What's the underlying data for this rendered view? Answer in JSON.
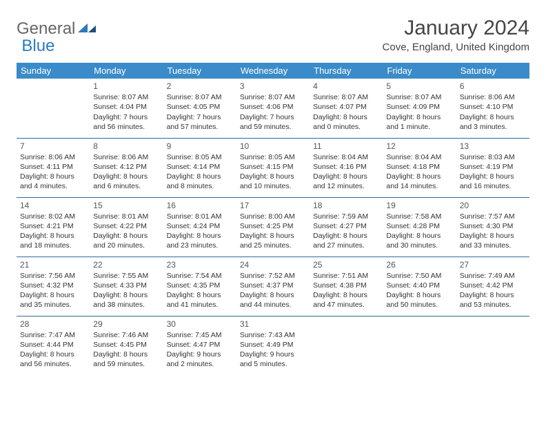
{
  "brand": {
    "part1": "General",
    "part2": "Blue"
  },
  "title": "January 2024",
  "location": "Cove, England, United Kingdom",
  "colors": {
    "header_bg": "#3a8bc9",
    "header_text": "#ffffff",
    "row_border": "#2b6aa0",
    "text": "#333333",
    "title_text": "#444444",
    "brand_gray": "#666666",
    "brand_blue": "#2b7bbf"
  },
  "day_headers": [
    "Sunday",
    "Monday",
    "Tuesday",
    "Wednesday",
    "Thursday",
    "Friday",
    "Saturday"
  ],
  "weeks": [
    [
      {
        "n": "",
        "lines": []
      },
      {
        "n": "1",
        "lines": [
          "Sunrise: 8:07 AM",
          "Sunset: 4:04 PM",
          "Daylight: 7 hours and 56 minutes."
        ]
      },
      {
        "n": "2",
        "lines": [
          "Sunrise: 8:07 AM",
          "Sunset: 4:05 PM",
          "Daylight: 7 hours and 57 minutes."
        ]
      },
      {
        "n": "3",
        "lines": [
          "Sunrise: 8:07 AM",
          "Sunset: 4:06 PM",
          "Daylight: 7 hours and 59 minutes."
        ]
      },
      {
        "n": "4",
        "lines": [
          "Sunrise: 8:07 AM",
          "Sunset: 4:07 PM",
          "Daylight: 8 hours and 0 minutes."
        ]
      },
      {
        "n": "5",
        "lines": [
          "Sunrise: 8:07 AM",
          "Sunset: 4:09 PM",
          "Daylight: 8 hours and 1 minute."
        ]
      },
      {
        "n": "6",
        "lines": [
          "Sunrise: 8:06 AM",
          "Sunset: 4:10 PM",
          "Daylight: 8 hours and 3 minutes."
        ]
      }
    ],
    [
      {
        "n": "7",
        "lines": [
          "Sunrise: 8:06 AM",
          "Sunset: 4:11 PM",
          "Daylight: 8 hours and 4 minutes."
        ]
      },
      {
        "n": "8",
        "lines": [
          "Sunrise: 8:06 AM",
          "Sunset: 4:12 PM",
          "Daylight: 8 hours and 6 minutes."
        ]
      },
      {
        "n": "9",
        "lines": [
          "Sunrise: 8:05 AM",
          "Sunset: 4:14 PM",
          "Daylight: 8 hours and 8 minutes."
        ]
      },
      {
        "n": "10",
        "lines": [
          "Sunrise: 8:05 AM",
          "Sunset: 4:15 PM",
          "Daylight: 8 hours and 10 minutes."
        ]
      },
      {
        "n": "11",
        "lines": [
          "Sunrise: 8:04 AM",
          "Sunset: 4:16 PM",
          "Daylight: 8 hours and 12 minutes."
        ]
      },
      {
        "n": "12",
        "lines": [
          "Sunrise: 8:04 AM",
          "Sunset: 4:18 PM",
          "Daylight: 8 hours and 14 minutes."
        ]
      },
      {
        "n": "13",
        "lines": [
          "Sunrise: 8:03 AM",
          "Sunset: 4:19 PM",
          "Daylight: 8 hours and 16 minutes."
        ]
      }
    ],
    [
      {
        "n": "14",
        "lines": [
          "Sunrise: 8:02 AM",
          "Sunset: 4:21 PM",
          "Daylight: 8 hours and 18 minutes."
        ]
      },
      {
        "n": "15",
        "lines": [
          "Sunrise: 8:01 AM",
          "Sunset: 4:22 PM",
          "Daylight: 8 hours and 20 minutes."
        ]
      },
      {
        "n": "16",
        "lines": [
          "Sunrise: 8:01 AM",
          "Sunset: 4:24 PM",
          "Daylight: 8 hours and 23 minutes."
        ]
      },
      {
        "n": "17",
        "lines": [
          "Sunrise: 8:00 AM",
          "Sunset: 4:25 PM",
          "Daylight: 8 hours and 25 minutes."
        ]
      },
      {
        "n": "18",
        "lines": [
          "Sunrise: 7:59 AM",
          "Sunset: 4:27 PM",
          "Daylight: 8 hours and 27 minutes."
        ]
      },
      {
        "n": "19",
        "lines": [
          "Sunrise: 7:58 AM",
          "Sunset: 4:28 PM",
          "Daylight: 8 hours and 30 minutes."
        ]
      },
      {
        "n": "20",
        "lines": [
          "Sunrise: 7:57 AM",
          "Sunset: 4:30 PM",
          "Daylight: 8 hours and 33 minutes."
        ]
      }
    ],
    [
      {
        "n": "21",
        "lines": [
          "Sunrise: 7:56 AM",
          "Sunset: 4:32 PM",
          "Daylight: 8 hours and 35 minutes."
        ]
      },
      {
        "n": "22",
        "lines": [
          "Sunrise: 7:55 AM",
          "Sunset: 4:33 PM",
          "Daylight: 8 hours and 38 minutes."
        ]
      },
      {
        "n": "23",
        "lines": [
          "Sunrise: 7:54 AM",
          "Sunset: 4:35 PM",
          "Daylight: 8 hours and 41 minutes."
        ]
      },
      {
        "n": "24",
        "lines": [
          "Sunrise: 7:52 AM",
          "Sunset: 4:37 PM",
          "Daylight: 8 hours and 44 minutes."
        ]
      },
      {
        "n": "25",
        "lines": [
          "Sunrise: 7:51 AM",
          "Sunset: 4:38 PM",
          "Daylight: 8 hours and 47 minutes."
        ]
      },
      {
        "n": "26",
        "lines": [
          "Sunrise: 7:50 AM",
          "Sunset: 4:40 PM",
          "Daylight: 8 hours and 50 minutes."
        ]
      },
      {
        "n": "27",
        "lines": [
          "Sunrise: 7:49 AM",
          "Sunset: 4:42 PM",
          "Daylight: 8 hours and 53 minutes."
        ]
      }
    ],
    [
      {
        "n": "28",
        "lines": [
          "Sunrise: 7:47 AM",
          "Sunset: 4:44 PM",
          "Daylight: 8 hours and 56 minutes."
        ]
      },
      {
        "n": "29",
        "lines": [
          "Sunrise: 7:46 AM",
          "Sunset: 4:45 PM",
          "Daylight: 8 hours and 59 minutes."
        ]
      },
      {
        "n": "30",
        "lines": [
          "Sunrise: 7:45 AM",
          "Sunset: 4:47 PM",
          "Daylight: 9 hours and 2 minutes."
        ]
      },
      {
        "n": "31",
        "lines": [
          "Sunrise: 7:43 AM",
          "Sunset: 4:49 PM",
          "Daylight: 9 hours and 5 minutes."
        ]
      },
      {
        "n": "",
        "lines": []
      },
      {
        "n": "",
        "lines": []
      },
      {
        "n": "",
        "lines": []
      }
    ]
  ]
}
